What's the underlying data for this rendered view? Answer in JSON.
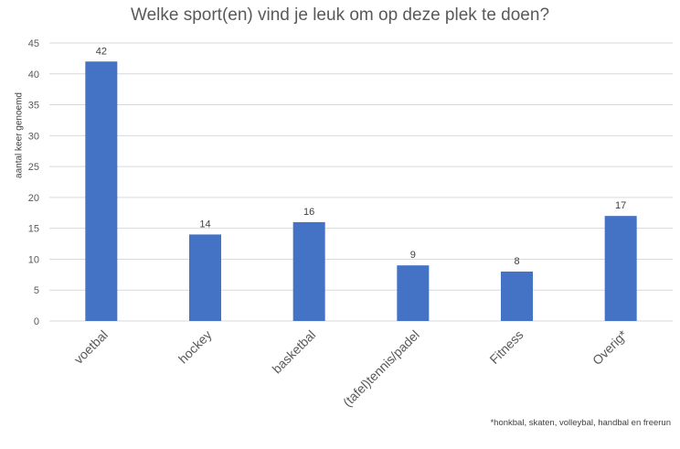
{
  "chart_data": {
    "type": "bar",
    "title": "Welke sport(en) vind je leuk om op deze plek te doen?",
    "ylabel": "aantal keer genoemd",
    "xlabel": "",
    "categories": [
      "voetbal",
      "hockey",
      "basketbal",
      "(tafel)tennis/padel",
      "Fitness",
      "Overig*"
    ],
    "values": [
      42,
      14,
      16,
      9,
      8,
      17
    ],
    "ylim": [
      0,
      45
    ],
    "yticks": [
      "0",
      "5",
      "10",
      "15",
      "20",
      "25",
      "30",
      "35",
      "40",
      "45"
    ],
    "grid": true,
    "bar_color": "#4472C4",
    "footnote": "*honkbal, skaten, volleybal, handbal en freerun"
  }
}
